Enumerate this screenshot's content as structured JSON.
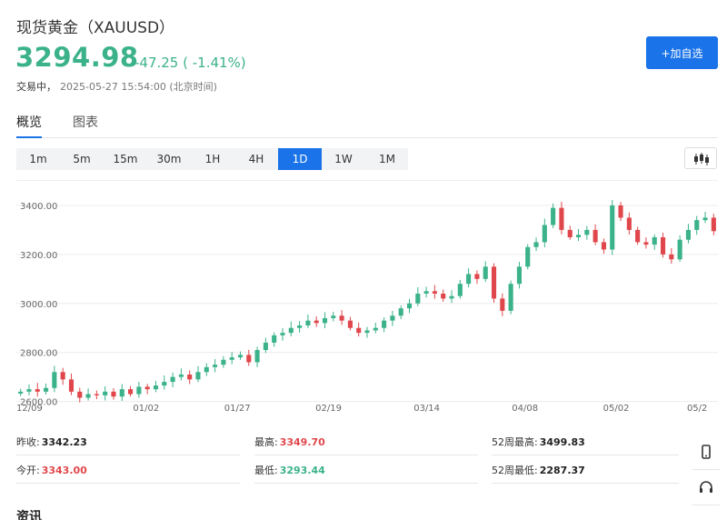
{
  "header": {
    "title": "现货黄金（XAUUSD）",
    "price": "3294.98",
    "change": "-47.25 ( -1.41%)",
    "status": "交易中，",
    "timestamp": "2025-05-27 15:54:00 (北京时间)",
    "watch_button": "+加自选"
  },
  "tabs": [
    "概览",
    "图表"
  ],
  "periods": [
    "1m",
    "5m",
    "15m",
    "30m",
    "1H",
    "4H",
    "1D",
    "1W",
    "1M"
  ],
  "active_period": "1D",
  "chart_data": {
    "type": "candlestick",
    "y_ticks": [
      "3400.00",
      "3200.00",
      "3000.00",
      "2800.00",
      "2600.00"
    ],
    "x_ticks": [
      "12/09",
      "01/02",
      "01/27",
      "02/19",
      "03/14",
      "04/08",
      "05/02",
      "05/2"
    ],
    "ylim": [
      2580,
      3500
    ],
    "up_color": "#3bb28a",
    "down_color": "#e0474c",
    "close_series": [
      2640,
      2650,
      2640,
      2655,
      2720,
      2690,
      2640,
      2615,
      2630,
      2625,
      2640,
      2620,
      2650,
      2630,
      2660,
      2650,
      2665,
      2680,
      2700,
      2710,
      2690,
      2720,
      2740,
      2750,
      2770,
      2780,
      2790,
      2760,
      2810,
      2840,
      2870,
      2880,
      2900,
      2910,
      2930,
      2920,
      2940,
      2950,
      2930,
      2900,
      2880,
      2890,
      2900,
      2930,
      2950,
      2980,
      3000,
      3040,
      3050,
      3040,
      3020,
      3030,
      3080,
      3120,
      3100,
      3150,
      3020,
      2970,
      3080,
      3150,
      3230,
      3250,
      3320,
      3390,
      3300,
      3270,
      3280,
      3300,
      3250,
      3220,
      3400,
      3350,
      3300,
      3250,
      3240,
      3270,
      3200,
      3180,
      3260,
      3300,
      3340,
      3350,
      3295
    ]
  },
  "stats": {
    "prev_close_label": "昨收:",
    "prev_close": "3342.23",
    "high_label": "最高:",
    "high": "3349.70",
    "w52_high_label": "52周最高:",
    "w52_high": "3499.83",
    "open_label": "今开:",
    "open": "3343.00",
    "low_label": "最低:",
    "low": "3293.44",
    "w52_low_label": "52周最低:",
    "w52_low": "2287.37"
  },
  "side_icons": [
    "phone-icon",
    "headset-icon"
  ],
  "news_title": "资讯"
}
